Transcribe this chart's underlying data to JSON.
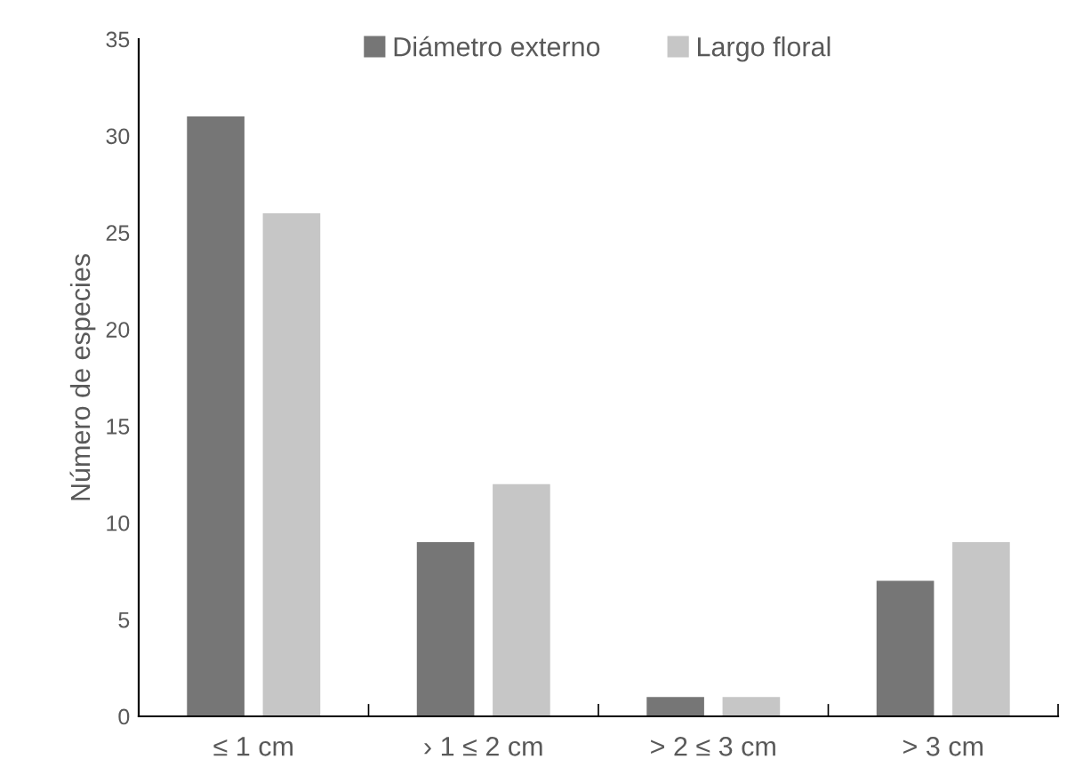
{
  "chart_data": {
    "type": "bar",
    "ylabel": "Número de especies",
    "categories": [
      "≤ 1 cm",
      "› 1 ≤ 2 cm",
      "> 2 ≤ 3 cm",
      "> 3 cm"
    ],
    "series": [
      {
        "name": "Diámetro externo",
        "color": "#767676",
        "values": [
          31,
          9,
          1,
          7
        ]
      },
      {
        "name": "Largo floral",
        "color": "#c6c6c6",
        "values": [
          26,
          12,
          1,
          9
        ]
      }
    ],
    "ylim": [
      0,
      35
    ],
    "yticks": [
      0,
      5,
      10,
      15,
      20,
      25,
      30,
      35
    ],
    "grid": false,
    "legend": "top"
  }
}
